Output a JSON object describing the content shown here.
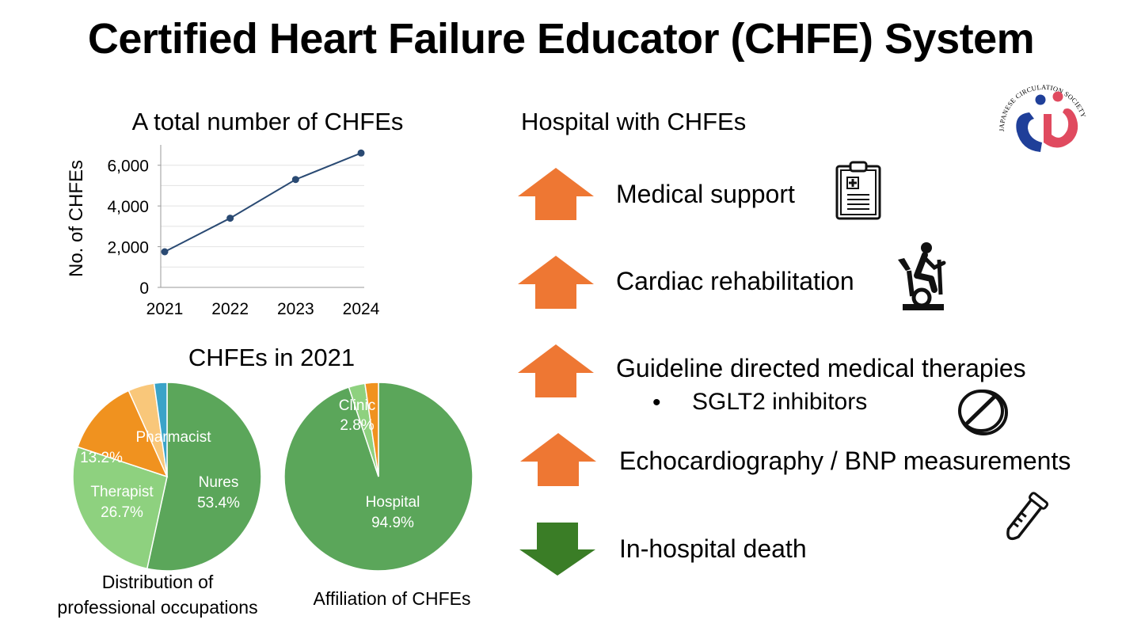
{
  "title": "Certified Heart Failure Educator (CHFE) System",
  "chart_data": [
    {
      "type": "line",
      "title": "A total number of CHFEs",
      "ylabel": "No. of  CHFEs",
      "xlabel": "",
      "x": [
        "2021",
        "2022",
        "2023",
        "2024"
      ],
      "values": [
        1750,
        3400,
        5300,
        6600
      ],
      "ylim": [
        0,
        7000
      ],
      "yticks": [
        0,
        2000,
        4000,
        6000
      ],
      "ytick_labels": [
        "0",
        "2,000",
        "4,000",
        "6,000"
      ],
      "grid": true,
      "color": "#2a4a73"
    },
    {
      "type": "pie",
      "group_title": "CHFEs in 2021",
      "caption": [
        "Distribution of",
        "professional occupations"
      ],
      "slices": [
        {
          "label": "Nures",
          "pct_label": "53.4%",
          "value": 53.4,
          "color": "#5ba65a"
        },
        {
          "label": "Therapist",
          "pct_label": "26.7%",
          "value": 26.7,
          "color": "#8ed17f"
        },
        {
          "label": "Pharmacist",
          "pct_label": "13.2%",
          "value": 13.2,
          "color": "#f0921f"
        },
        {
          "label": "",
          "pct_label": "",
          "value": 4.5,
          "color": "#f9c77a"
        },
        {
          "label": "",
          "pct_label": "",
          "value": 2.2,
          "color": "#3aa3c8"
        }
      ]
    },
    {
      "type": "pie",
      "caption": [
        "Affiliation of CHFEs"
      ],
      "slices": [
        {
          "label": "Hospital",
          "pct_label": "94.9%",
          "value": 94.9,
          "color": "#5ba65a"
        },
        {
          "label": "Clinic",
          "pct_label": "2.8%",
          "value": 2.8,
          "color": "#8ed17f"
        },
        {
          "label": "",
          "pct_label": "",
          "value": 2.3,
          "color": "#f0921f"
        }
      ]
    }
  ],
  "hospital": {
    "heading": "Hospital with CHFEs",
    "items": [
      {
        "label": "Medical support",
        "direction": "up",
        "icon": "clipboard-icon"
      },
      {
        "label": "Cardiac rehabilitation",
        "direction": "up",
        "icon": "exercise-bike-icon"
      },
      {
        "label": "Guideline directed medical therapies",
        "direction": "up",
        "icon": "pill-icon",
        "sub": "SGLT2 inhibitors"
      },
      {
        "label": "Echocardiography / BNP measurements",
        "direction": "up",
        "icon": "test-tube-icon"
      },
      {
        "label": "In-hospital death",
        "direction": "down",
        "icon": ""
      }
    ],
    "bullet": "•"
  },
  "colors": {
    "up_arrow": "#ee7733",
    "down_arrow": "#3a7d26"
  },
  "logo": {
    "text": "JAPANESE CIRCULATION SOCIETY",
    "colors": [
      "#1f3f99",
      "#e04a5f"
    ]
  }
}
